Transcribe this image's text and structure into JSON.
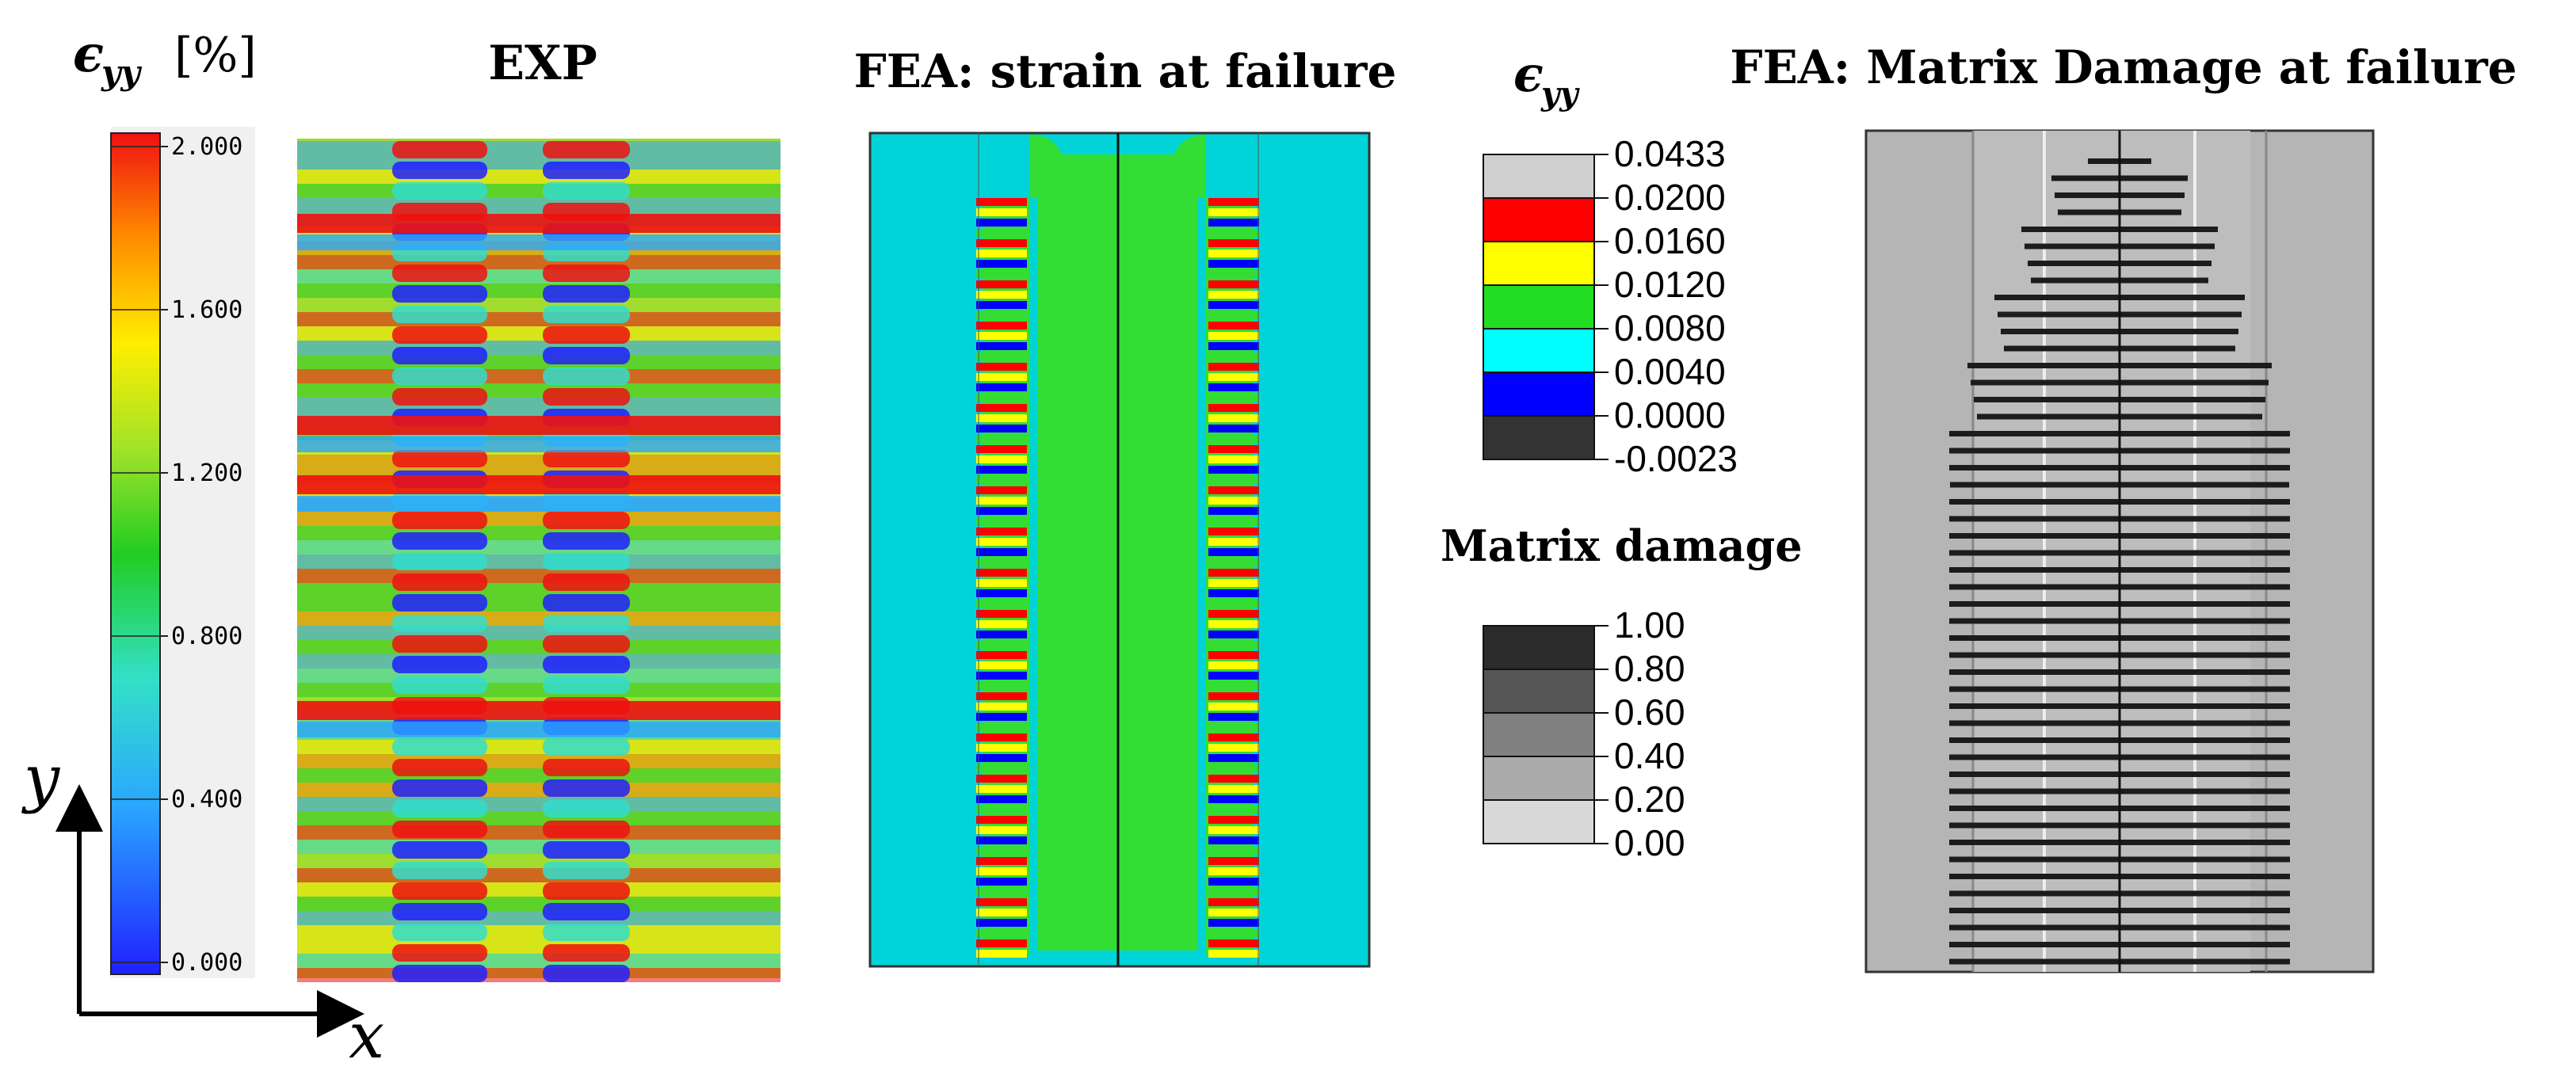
{
  "panels": {
    "exp": {
      "title": "EXP"
    },
    "fea_strain": {
      "title": "FEA: strain at failure"
    },
    "fea_damage": {
      "title": "FEA: Matrix Damage at failure"
    }
  },
  "exp_colorbar": {
    "symbol": "ϵ",
    "subscript": "yy",
    "unit": "[%]",
    "ticks": [
      "2.000",
      "1.600",
      "1.200",
      "0.800",
      "0.400",
      "0.000"
    ]
  },
  "strain_legend": {
    "symbol": "ϵ",
    "subscript": "yy",
    "values": [
      "0.0433",
      "0.0200",
      "0.0160",
      "0.0120",
      "0.0080",
      "0.0040",
      "0.0000",
      "-0.0023"
    ],
    "colors": [
      "#cfcfcf",
      "#ff0000",
      "#ffff00",
      "#22dd22",
      "#00ffff",
      "#0000ff",
      "#333333"
    ]
  },
  "damage_legend": {
    "title": "Matrix damage",
    "values": [
      "1.00",
      "0.80",
      "0.60",
      "0.40",
      "0.20",
      "0.00"
    ],
    "colors": [
      "#2b2b2b",
      "#555555",
      "#808080",
      "#aaaaaa",
      "#d8d8d8"
    ]
  },
  "axes": {
    "y_label": "y",
    "x_label": "x"
  },
  "colors": {
    "fea_background": "#00d4d8",
    "fea_green": "#33dd33",
    "damage_background": "#b5b5b5",
    "crack": "#1c1c1c"
  }
}
